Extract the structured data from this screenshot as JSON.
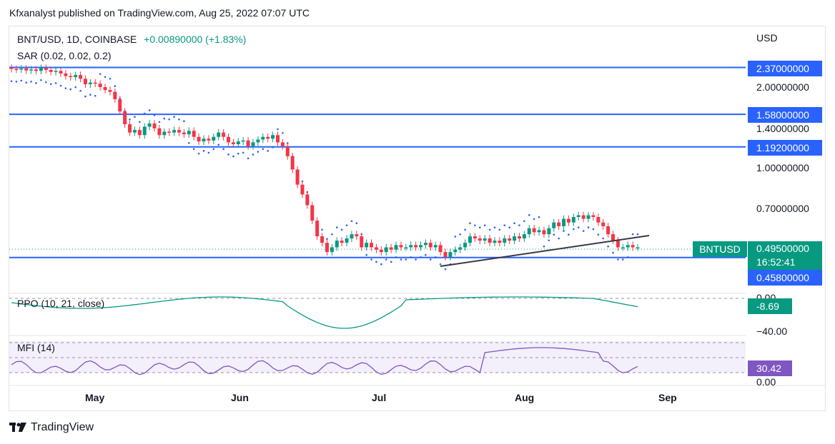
{
  "publisher": "Kfxanalyst published on TradingView.com, Aug 25, 2022 07:07 UTC",
  "legend": {
    "symbol": "BNT/USD, 1D, COINBASE",
    "change": "+0.00890000 (+1.83%)",
    "sar": "SAR (0.02, 0.02, 0.2)"
  },
  "currency": "USD",
  "price_axis": {
    "ticks": [
      "2.00000000",
      "1.40000000",
      "1.00000000",
      "0.70000000"
    ]
  },
  "levels": [
    {
      "label": "2.37000000",
      "color": "#2962ff"
    },
    {
      "label": "1.58000000",
      "color": "#2962ff"
    },
    {
      "label": "1.19200000",
      "color": "#2962ff"
    },
    {
      "label": "0.45800000",
      "color": "#2962ff"
    }
  ],
  "current": {
    "symbol_tag": "BNTUSD",
    "price": "0.49500000",
    "countdown": "16:52:41",
    "color": "#089981"
  },
  "ppo": {
    "label": "PPO (10, 21, close)",
    "value": "-8.69",
    "ticks": [
      "0.00",
      "−40.00"
    ],
    "color": "#089981"
  },
  "mfi": {
    "label": "MFI (14)",
    "value": "30.42",
    "ticks": [
      "0.00"
    ],
    "color": "#7e57c2"
  },
  "time_axis": [
    "May",
    "Jun",
    "Jul",
    "Aug",
    "Sep"
  ],
  "footer": {
    "brand": "TradingView",
    "logo_icon": "tradingview-logo-icon"
  },
  "colors": {
    "up": "#089981",
    "down": "#f23645",
    "sar": "#2962ff",
    "trendline": "#363a45"
  },
  "chart_data": {
    "type": "candlestick",
    "symbol": "BNT/USD",
    "interval": "1D",
    "y_scale": "log",
    "close_approx": [
      2.34,
      2.33,
      2.35,
      2.31,
      2.33,
      2.3,
      2.36,
      2.32,
      2.28,
      2.3,
      2.25,
      2.2,
      2.18,
      2.22,
      2.15,
      2.05,
      2.08,
      2.06,
      2.0,
      1.95,
      1.92,
      1.8,
      1.62,
      1.45,
      1.35,
      1.38,
      1.32,
      1.42,
      1.46,
      1.4,
      1.32,
      1.36,
      1.35,
      1.38,
      1.35,
      1.33,
      1.37,
      1.3,
      1.25,
      1.28,
      1.26,
      1.3,
      1.35,
      1.3,
      1.24,
      1.22,
      1.25,
      1.26,
      1.2,
      1.24,
      1.27,
      1.3,
      1.28,
      1.32,
      1.24,
      1.2,
      1.1,
      0.98,
      0.86,
      0.79,
      0.72,
      0.63,
      0.55,
      0.52,
      0.48,
      0.5,
      0.53,
      0.52,
      0.54,
      0.56,
      0.55,
      0.5,
      0.52,
      0.5,
      0.49,
      0.48,
      0.5,
      0.49,
      0.51,
      0.5,
      0.5,
      0.51,
      0.5,
      0.51,
      0.52,
      0.5,
      0.51,
      0.48,
      0.46,
      0.48,
      0.49,
      0.5,
      0.52,
      0.55,
      0.54,
      0.53,
      0.54,
      0.52,
      0.53,
      0.52,
      0.54,
      0.53,
      0.55,
      0.54,
      0.56,
      0.59,
      0.57,
      0.58,
      0.56,
      0.59,
      0.62,
      0.6,
      0.64,
      0.62,
      0.65,
      0.66,
      0.64,
      0.66,
      0.65,
      0.62,
      0.6,
      0.56,
      0.53,
      0.5,
      0.5,
      0.51,
      0.5,
      0.5
    ]
  }
}
